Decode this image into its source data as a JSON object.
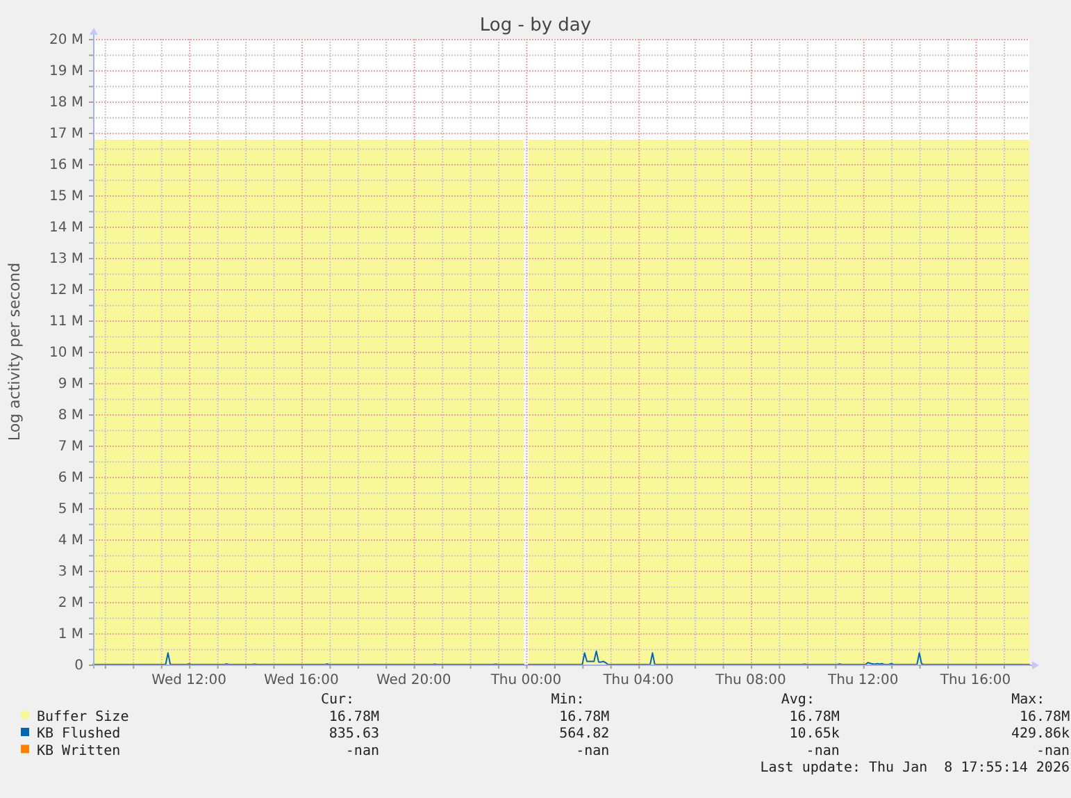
{
  "chart_data": {
    "type": "line",
    "title": "Log - by day",
    "ylabel": "Log activity per second",
    "xlim": [
      "2026-01-07T08:35",
      "2026-01-08T17:55"
    ],
    "xticks": [
      {
        "value": "2026-01-07T09:00",
        "label": null
      },
      {
        "value": "2026-01-07T10:00",
        "label": null
      },
      {
        "value": "2026-01-07T11:00",
        "label": null
      },
      {
        "value": "2026-01-07T12:00",
        "label": "Wed 12:00"
      },
      {
        "value": "2026-01-07T13:00",
        "label": null
      },
      {
        "value": "2026-01-07T14:00",
        "label": null
      },
      {
        "value": "2026-01-07T15:00",
        "label": null
      },
      {
        "value": "2026-01-07T16:00",
        "label": "Wed 16:00"
      },
      {
        "value": "2026-01-07T17:00",
        "label": null
      },
      {
        "value": "2026-01-07T18:00",
        "label": null
      },
      {
        "value": "2026-01-07T19:00",
        "label": null
      },
      {
        "value": "2026-01-07T20:00",
        "label": "Wed 20:00"
      },
      {
        "value": "2026-01-07T21:00",
        "label": null
      },
      {
        "value": "2026-01-07T22:00",
        "label": null
      },
      {
        "value": "2026-01-07T23:00",
        "label": null
      },
      {
        "value": "2026-01-08T00:00",
        "label": "Thu 00:00"
      },
      {
        "value": "2026-01-08T01:00",
        "label": null
      },
      {
        "value": "2026-01-08T02:00",
        "label": null
      },
      {
        "value": "2026-01-08T03:00",
        "label": null
      },
      {
        "value": "2026-01-08T04:00",
        "label": "Thu 04:00"
      },
      {
        "value": "2026-01-08T05:00",
        "label": null
      },
      {
        "value": "2026-01-08T06:00",
        "label": null
      },
      {
        "value": "2026-01-08T07:00",
        "label": null
      },
      {
        "value": "2026-01-08T08:00",
        "label": "Thu 08:00"
      },
      {
        "value": "2026-01-08T09:00",
        "label": null
      },
      {
        "value": "2026-01-08T10:00",
        "label": null
      },
      {
        "value": "2026-01-08T11:00",
        "label": null
      },
      {
        "value": "2026-01-08T12:00",
        "label": "Thu 12:00"
      },
      {
        "value": "2026-01-08T13:00",
        "label": null
      },
      {
        "value": "2026-01-08T14:00",
        "label": null
      },
      {
        "value": "2026-01-08T15:00",
        "label": null
      },
      {
        "value": "2026-01-08T16:00",
        "label": "Thu 16:00"
      },
      {
        "value": "2026-01-08T17:00",
        "label": null
      }
    ],
    "ylim": [
      0,
      20000000
    ],
    "yticks": [
      0,
      {
        "value": 500000,
        "label": null
      },
      {
        "value": 1000000,
        "label": "1 M"
      },
      {
        "value": 1500000,
        "label": null
      },
      {
        "value": 2000000,
        "label": "2 M"
      },
      {
        "value": 2500000,
        "label": null
      },
      {
        "value": 3000000,
        "label": "3 M"
      },
      {
        "value": 3500000,
        "label": null
      },
      {
        "value": 4000000,
        "label": "4 M"
      },
      {
        "value": 4500000,
        "label": null
      },
      {
        "value": 5000000,
        "label": "5 M"
      },
      {
        "value": 5500000,
        "label": null
      },
      {
        "value": 6000000,
        "label": "6 M"
      },
      {
        "value": 6500000,
        "label": null
      },
      {
        "value": 7000000,
        "label": "7 M"
      },
      {
        "value": 7500000,
        "label": null
      },
      {
        "value": 8000000,
        "label": "8 M"
      },
      {
        "value": 8500000,
        "label": null
      },
      {
        "value": 9000000,
        "label": "9 M"
      },
      {
        "value": 9500000,
        "label": null
      },
      {
        "value": 10000000,
        "label": "10 M"
      },
      {
        "value": 10500000,
        "label": null
      },
      {
        "value": 11000000,
        "label": "11 M"
      },
      {
        "value": 11500000,
        "label": null
      },
      {
        "value": 12000000,
        "label": "12 M"
      },
      {
        "value": 12500000,
        "label": null
      },
      {
        "value": 13000000,
        "label": "13 M"
      },
      {
        "value": 13500000,
        "label": null
      },
      {
        "value": 14000000,
        "label": "14 M"
      },
      {
        "value": 14500000,
        "label": null
      },
      {
        "value": 15000000,
        "label": "15 M"
      },
      {
        "value": 15500000,
        "label": null
      },
      {
        "value": 16000000,
        "label": "16 M"
      },
      {
        "value": 16500000,
        "label": null
      },
      {
        "value": 17000000,
        "label": "17 M"
      },
      {
        "value": 17500000,
        "label": null
      },
      {
        "value": 18000000,
        "label": "18 M"
      },
      {
        "value": 18500000,
        "label": null
      },
      {
        "value": 19000000,
        "label": "19 M"
      },
      {
        "value": 19500000,
        "label": null
      },
      {
        "value": 20000000,
        "label": "20 M"
      }
    ],
    "grid": true,
    "legend": "bottom",
    "series": [
      {
        "name": "Buffer Size",
        "type": "area",
        "color": "#f8f89a",
        "x": [
          "2026-01-07T08:35",
          "2026-01-07T23:55",
          "2026-01-08T00:00",
          "2026-01-08T00:05",
          "2026-01-08T17:55"
        ],
        "values": [
          16780000,
          16780000,
          null,
          16780000,
          16780000
        ]
      },
      {
        "name": "KB Flushed",
        "color": "#0066b3",
        "x": [
          "2026-01-07T08:35",
          "2026-01-07T11:10",
          "2026-01-07T11:15",
          "2026-01-07T11:20",
          "2026-01-07T11:55",
          "2026-01-07T12:00",
          "2026-01-07T12:05",
          "2026-01-07T13:15",
          "2026-01-07T13:20",
          "2026-01-07T13:25",
          "2026-01-07T14:15",
          "2026-01-07T14:20",
          "2026-01-07T14:25",
          "2026-01-07T16:50",
          "2026-01-07T16:55",
          "2026-01-07T17:00",
          "2026-01-07T20:40",
          "2026-01-07T20:45",
          "2026-01-07T20:50",
          "2026-01-07T22:50",
          "2026-01-07T22:55",
          "2026-01-07T23:00",
          "2026-01-07T23:55",
          "2026-01-08T00:00",
          "2026-01-08T00:05",
          "2026-01-08T02:00",
          "2026-01-08T02:05",
          "2026-01-08T02:10",
          "2026-01-08T02:15",
          "2026-01-08T02:20",
          "2026-01-08T02:25",
          "2026-01-08T02:30",
          "2026-01-08T02:35",
          "2026-01-08T02:40",
          "2026-01-08T02:45",
          "2026-01-08T02:50",
          "2026-01-08T02:55",
          "2026-01-08T04:25",
          "2026-01-08T04:30",
          "2026-01-08T04:35",
          "2026-01-08T09:50",
          "2026-01-08T09:55",
          "2026-01-08T10:00",
          "2026-01-08T11:05",
          "2026-01-08T11:10",
          "2026-01-08T11:15",
          "2026-01-08T12:05",
          "2026-01-08T12:10",
          "2026-01-08T12:15",
          "2026-01-08T12:20",
          "2026-01-08T12:25",
          "2026-01-08T12:30",
          "2026-01-08T12:35",
          "2026-01-08T12:40",
          "2026-01-08T12:45",
          "2026-01-08T12:55",
          "2026-01-08T13:00",
          "2026-01-08T13:05",
          "2026-01-08T13:55",
          "2026-01-08T14:00",
          "2026-01-08T14:05",
          "2026-01-08T14:10",
          "2026-01-08T17:55"
        ],
        "values": [
          0,
          0,
          370000,
          0,
          0,
          20000,
          0,
          0,
          20000,
          0,
          0,
          10000,
          0,
          0,
          20000,
          0,
          0,
          10000,
          0,
          0,
          10000,
          0,
          0,
          null,
          0,
          0,
          370000,
          100000,
          100000,
          100000,
          100000,
          430000,
          80000,
          80000,
          100000,
          60000,
          0,
          0,
          370000,
          0,
          0,
          10000,
          0,
          0,
          20000,
          0,
          0,
          60000,
          40000,
          20000,
          10000,
          30000,
          10000,
          30000,
          0,
          0,
          30000,
          0,
          0,
          370000,
          20000,
          0,
          0
        ]
      },
      {
        "name": "KB Written",
        "color": "#ff8000"
      }
    ],
    "annotations": [
      "Cur:",
      "Min:",
      "Avg:",
      "Max:",
      "16.78M",
      "16.78M",
      "16.78M",
      "16.78M",
      "835.63",
      "564.82",
      "10.65k",
      "429.86k",
      "-nan",
      "-nan",
      "-nan",
      "-nan",
      "Last update: Thu Jan  8 17:55:14 2026"
    ]
  }
}
